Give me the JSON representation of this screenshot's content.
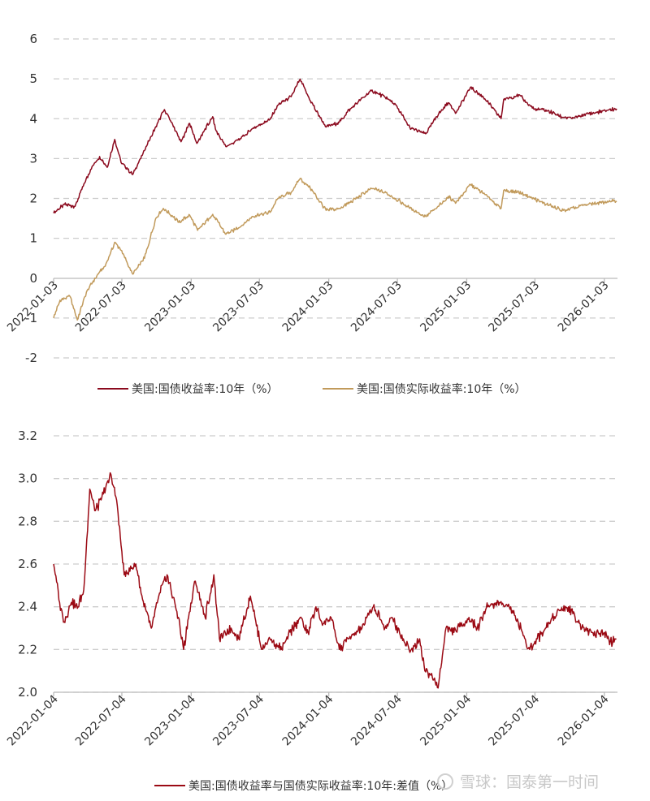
{
  "watermark": {
    "text": "雪球：国泰第一时间"
  },
  "colors": {
    "nominal": "#8b0a1e",
    "real": "#c19a5b",
    "spread": "#9b0a14",
    "grid": "#cccccc",
    "axis": "#bbbbbb"
  },
  "chart_data": [
    {
      "type": "line",
      "ylim": [
        -2,
        6
      ],
      "y_ticks": [
        "6",
        "5",
        "4",
        "3",
        "2",
        "1",
        "0",
        "-1",
        "-2"
      ],
      "x_ticks": [
        "2022-01-03",
        "2022-07-03",
        "2023-01-03",
        "2023-07-03",
        "2024-01-03",
        "2024-07-03",
        "2025-01-03",
        "2025-07-03",
        "2026-01-03"
      ],
      "legend": "bottom",
      "grid": true,
      "series": [
        {
          "name": "美国:国债收益率:10年（%）",
          "points": [
            [
              "2022-01-03",
              1.63
            ],
            [
              "2022-02-01",
              1.85
            ],
            [
              "2022-03-01",
              1.8
            ],
            [
              "2022-03-15",
              2.15
            ],
            [
              "2022-04-15",
              2.8
            ],
            [
              "2022-05-05",
              3.05
            ],
            [
              "2022-05-25",
              2.78
            ],
            [
              "2022-06-14",
              3.48
            ],
            [
              "2022-07-01",
              2.9
            ],
            [
              "2022-08-01",
              2.6
            ],
            [
              "2022-09-01",
              3.2
            ],
            [
              "2022-10-01",
              3.8
            ],
            [
              "2022-10-24",
              4.23
            ],
            [
              "2022-11-15",
              3.85
            ],
            [
              "2022-12-07",
              3.42
            ],
            [
              "2022-12-30",
              3.88
            ],
            [
              "2023-01-18",
              3.38
            ],
            [
              "2023-03-01",
              4.05
            ],
            [
              "2023-03-10",
              3.7
            ],
            [
              "2023-04-05",
              3.3
            ],
            [
              "2023-05-15",
              3.5
            ],
            [
              "2023-06-15",
              3.75
            ],
            [
              "2023-07-31",
              3.98
            ],
            [
              "2023-08-21",
              4.34
            ],
            [
              "2023-09-25",
              4.55
            ],
            [
              "2023-10-19",
              4.99
            ],
            [
              "2023-11-15",
              4.45
            ],
            [
              "2023-12-27",
              3.79
            ],
            [
              "2024-01-31",
              3.91
            ],
            [
              "2024-02-29",
              4.25
            ],
            [
              "2024-04-25",
              4.7
            ],
            [
              "2024-05-30",
              4.55
            ],
            [
              "2024-06-28",
              4.36
            ],
            [
              "2024-08-05",
              3.78
            ],
            [
              "2024-09-16",
              3.62
            ],
            [
              "2024-10-15",
              4.05
            ],
            [
              "2024-11-15",
              4.4
            ],
            [
              "2024-12-06",
              4.15
            ],
            [
              "2025-01-13",
              4.79
            ],
            [
              "2025-02-20",
              4.5
            ],
            [
              "2025-04-04",
              4.0
            ],
            [
              "2025-04-11",
              4.48
            ],
            [
              "2025-05-21",
              4.6
            ],
            [
              "2025-06-30",
              4.24
            ],
            [
              "2025-08-01",
              4.22
            ],
            [
              "2025-09-16",
              4.03
            ],
            [
              "2025-10-15",
              4.02
            ],
            [
              "2025-11-15",
              4.12
            ],
            [
              "2025-12-15",
              4.16
            ],
            [
              "2026-01-15",
              4.22
            ],
            [
              "2026-02-05",
              4.25
            ]
          ]
        },
        {
          "name": "美国:国债实际收益率:10年（%）",
          "points": [
            [
              "2022-01-03",
              -1.0
            ],
            [
              "2022-01-20",
              -0.55
            ],
            [
              "2022-02-15",
              -0.45
            ],
            [
              "2022-03-07",
              -1.05
            ],
            [
              "2022-03-31",
              -0.35
            ],
            [
              "2022-04-30",
              0.1
            ],
            [
              "2022-05-20",
              0.3
            ],
            [
              "2022-06-14",
              0.9
            ],
            [
              "2022-07-01",
              0.7
            ],
            [
              "2022-08-01",
              0.1
            ],
            [
              "2022-09-01",
              0.5
            ],
            [
              "2022-10-01",
              1.5
            ],
            [
              "2022-10-21",
              1.75
            ],
            [
              "2022-11-15",
              1.55
            ],
            [
              "2022-12-01",
              1.4
            ],
            [
              "2022-12-30",
              1.58
            ],
            [
              "2023-01-20",
              1.2
            ],
            [
              "2023-03-01",
              1.6
            ],
            [
              "2023-04-05",
              1.1
            ],
            [
              "2023-05-15",
              1.3
            ],
            [
              "2023-06-15",
              1.55
            ],
            [
              "2023-07-31",
              1.65
            ],
            [
              "2023-08-21",
              2.0
            ],
            [
              "2023-09-25",
              2.15
            ],
            [
              "2023-10-19",
              2.5
            ],
            [
              "2023-11-15",
              2.25
            ],
            [
              "2023-12-27",
              1.7
            ],
            [
              "2024-01-31",
              1.75
            ],
            [
              "2024-02-29",
              1.9
            ],
            [
              "2024-04-25",
              2.25
            ],
            [
              "2024-05-30",
              2.15
            ],
            [
              "2024-06-28",
              2.0
            ],
            [
              "2024-08-05",
              1.75
            ],
            [
              "2024-09-16",
              1.55
            ],
            [
              "2024-10-15",
              1.75
            ],
            [
              "2024-11-15",
              2.05
            ],
            [
              "2024-12-06",
              1.9
            ],
            [
              "2025-01-13",
              2.35
            ],
            [
              "2025-02-20",
              2.1
            ],
            [
              "2025-04-04",
              1.75
            ],
            [
              "2025-04-11",
              2.2
            ],
            [
              "2025-05-21",
              2.15
            ],
            [
              "2025-06-30",
              2.0
            ],
            [
              "2025-08-01",
              1.85
            ],
            [
              "2025-09-16",
              1.7
            ],
            [
              "2025-10-15",
              1.75
            ],
            [
              "2025-11-15",
              1.85
            ],
            [
              "2025-12-15",
              1.88
            ],
            [
              "2026-01-15",
              1.92
            ],
            [
              "2026-02-05",
              1.93
            ]
          ]
        }
      ]
    },
    {
      "type": "line",
      "ylim": [
        2.0,
        3.2
      ],
      "y_ticks": [
        "3.2",
        "3.0",
        "2.8",
        "2.6",
        "2.4",
        "2.2",
        "2.0"
      ],
      "x_ticks": [
        "2022-01-04",
        "2022-07-04",
        "2023-01-04",
        "2023-07-04",
        "2024-01-04",
        "2024-07-04",
        "2025-01-04",
        "2025-07-04",
        "2026-01-04"
      ],
      "legend": "bottom",
      "grid": true,
      "series": [
        {
          "name": "美国:国债收益率与国债实际收益率:10年:差值（%）",
          "points": [
            [
              "2022-01-04",
              2.6
            ],
            [
              "2022-01-20",
              2.42
            ],
            [
              "2022-02-01",
              2.33
            ],
            [
              "2022-02-20",
              2.42
            ],
            [
              "2022-03-10",
              2.4
            ],
            [
              "2022-03-25",
              2.48
            ],
            [
              "2022-04-10",
              2.95
            ],
            [
              "2022-04-25",
              2.85
            ],
            [
              "2022-05-10",
              2.9
            ],
            [
              "2022-06-05",
              3.02
            ],
            [
              "2022-06-20",
              2.9
            ],
            [
              "2022-07-10",
              2.55
            ],
            [
              "2022-08-10",
              2.6
            ],
            [
              "2022-09-01",
              2.4
            ],
            [
              "2022-09-20",
              2.3
            ],
            [
              "2022-10-10",
              2.45
            ],
            [
              "2022-11-01",
              2.55
            ],
            [
              "2022-12-01",
              2.35
            ],
            [
              "2022-12-15",
              2.2
            ],
            [
              "2022-12-28",
              2.35
            ],
            [
              "2023-01-15",
              2.52
            ],
            [
              "2023-02-10",
              2.35
            ],
            [
              "2023-03-05",
              2.55
            ],
            [
              "2023-03-20",
              2.25
            ],
            [
              "2023-04-20",
              2.3
            ],
            [
              "2023-05-10",
              2.25
            ],
            [
              "2023-06-10",
              2.45
            ],
            [
              "2023-07-10",
              2.2
            ],
            [
              "2023-08-01",
              2.25
            ],
            [
              "2023-09-01",
              2.2
            ],
            [
              "2023-10-01",
              2.3
            ],
            [
              "2023-10-20",
              2.35
            ],
            [
              "2023-11-10",
              2.28
            ],
            [
              "2023-12-01",
              2.4
            ],
            [
              "2023-12-20",
              2.32
            ],
            [
              "2024-01-10",
              2.35
            ],
            [
              "2024-02-01",
              2.2
            ],
            [
              "2024-02-25",
              2.25
            ],
            [
              "2024-04-01",
              2.3
            ],
            [
              "2024-05-01",
              2.4
            ],
            [
              "2024-06-01",
              2.3
            ],
            [
              "2024-06-20",
              2.35
            ],
            [
              "2024-07-20",
              2.25
            ],
            [
              "2024-08-10",
              2.2
            ],
            [
              "2024-09-01",
              2.25
            ],
            [
              "2024-09-15",
              2.1
            ],
            [
              "2024-10-01",
              2.08
            ],
            [
              "2024-10-20",
              2.02
            ],
            [
              "2024-11-10",
              2.3
            ],
            [
              "2024-12-01",
              2.28
            ],
            [
              "2025-01-10",
              2.35
            ],
            [
              "2025-02-01",
              2.3
            ],
            [
              "2025-03-01",
              2.4
            ],
            [
              "2025-04-01",
              2.42
            ],
            [
              "2025-05-01",
              2.4
            ],
            [
              "2025-06-01",
              2.28
            ],
            [
              "2025-06-20",
              2.2
            ],
            [
              "2025-07-10",
              2.25
            ],
            [
              "2025-08-01",
              2.3
            ],
            [
              "2025-09-01",
              2.38
            ],
            [
              "2025-10-01",
              2.4
            ],
            [
              "2025-11-01",
              2.32
            ],
            [
              "2025-12-01",
              2.28
            ],
            [
              "2026-01-04",
              2.28
            ],
            [
              "2026-01-20",
              2.24
            ],
            [
              "2026-02-05",
              2.25
            ]
          ]
        }
      ]
    }
  ]
}
